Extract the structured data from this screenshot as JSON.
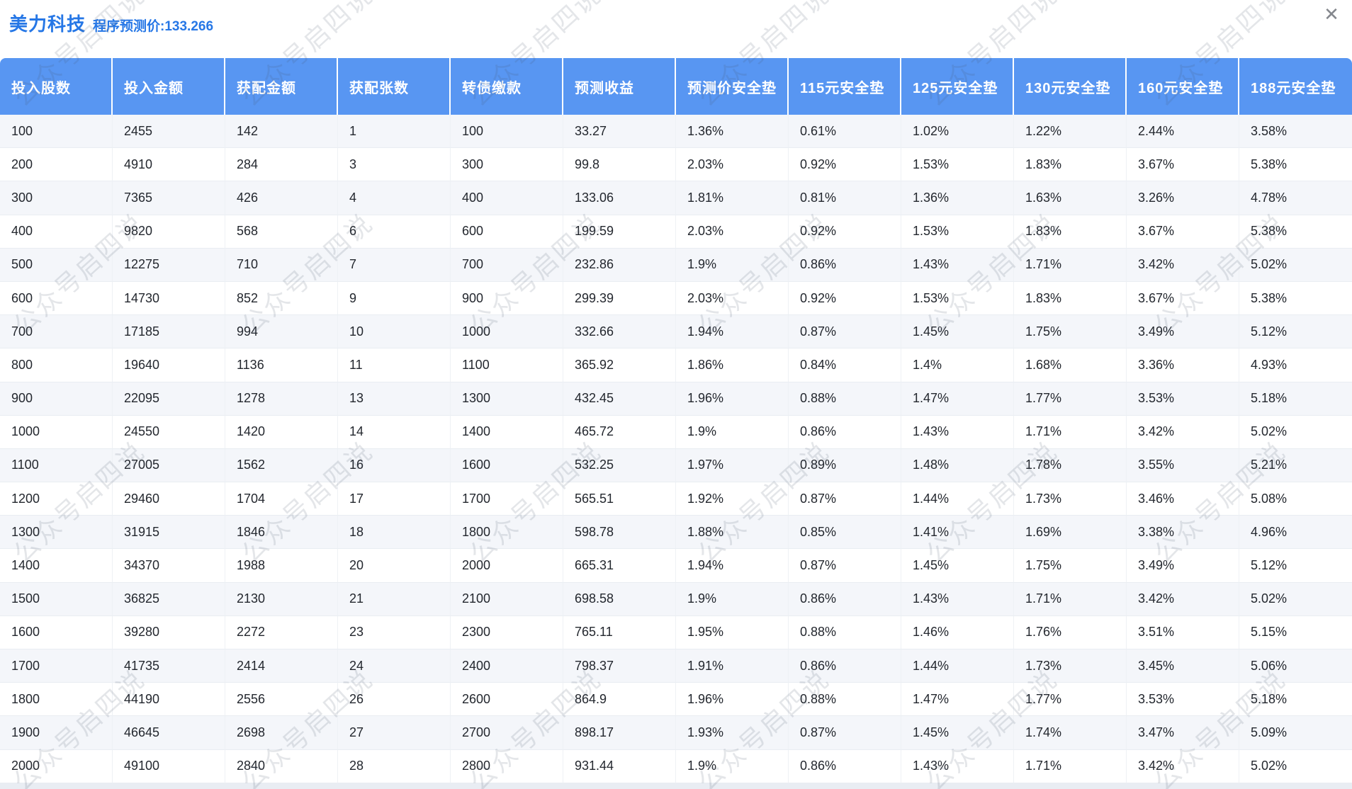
{
  "header": {
    "title": "美力科技",
    "subtitle": "程序预测价:133.266",
    "close_icon": "✕"
  },
  "watermark": {
    "text": "公众号启四说"
  },
  "colors": {
    "accent_blue": "#2677e6",
    "table_header_bg": "#5896f2",
    "row_alt_bg": "#f4f6fa",
    "bottom_strip": "#e9edf3"
  },
  "table": {
    "columns": [
      "投入股数",
      "投入金额",
      "获配金额",
      "获配张数",
      "转债缴款",
      "预测收益",
      "预测价安全垫",
      "115元安全垫",
      "125元安全垫",
      "130元安全垫",
      "160元安全垫",
      "188元安全垫"
    ],
    "rows": [
      [
        "100",
        "2455",
        "142",
        "1",
        "100",
        "33.27",
        "1.36%",
        "0.61%",
        "1.02%",
        "1.22%",
        "2.44%",
        "3.58%"
      ],
      [
        "200",
        "4910",
        "284",
        "3",
        "300",
        "99.8",
        "2.03%",
        "0.92%",
        "1.53%",
        "1.83%",
        "3.67%",
        "5.38%"
      ],
      [
        "300",
        "7365",
        "426",
        "4",
        "400",
        "133.06",
        "1.81%",
        "0.81%",
        "1.36%",
        "1.63%",
        "3.26%",
        "4.78%"
      ],
      [
        "400",
        "9820",
        "568",
        "6",
        "600",
        "199.59",
        "2.03%",
        "0.92%",
        "1.53%",
        "1.83%",
        "3.67%",
        "5.38%"
      ],
      [
        "500",
        "12275",
        "710",
        "7",
        "700",
        "232.86",
        "1.9%",
        "0.86%",
        "1.43%",
        "1.71%",
        "3.42%",
        "5.02%"
      ],
      [
        "600",
        "14730",
        "852",
        "9",
        "900",
        "299.39",
        "2.03%",
        "0.92%",
        "1.53%",
        "1.83%",
        "3.67%",
        "5.38%"
      ],
      [
        "700",
        "17185",
        "994",
        "10",
        "1000",
        "332.66",
        "1.94%",
        "0.87%",
        "1.45%",
        "1.75%",
        "3.49%",
        "5.12%"
      ],
      [
        "800",
        "19640",
        "1136",
        "11",
        "1100",
        "365.92",
        "1.86%",
        "0.84%",
        "1.4%",
        "1.68%",
        "3.36%",
        "4.93%"
      ],
      [
        "900",
        "22095",
        "1278",
        "13",
        "1300",
        "432.45",
        "1.96%",
        "0.88%",
        "1.47%",
        "1.77%",
        "3.53%",
        "5.18%"
      ],
      [
        "1000",
        "24550",
        "1420",
        "14",
        "1400",
        "465.72",
        "1.9%",
        "0.86%",
        "1.43%",
        "1.71%",
        "3.42%",
        "5.02%"
      ],
      [
        "1100",
        "27005",
        "1562",
        "16",
        "1600",
        "532.25",
        "1.97%",
        "0.89%",
        "1.48%",
        "1.78%",
        "3.55%",
        "5.21%"
      ],
      [
        "1200",
        "29460",
        "1704",
        "17",
        "1700",
        "565.51",
        "1.92%",
        "0.87%",
        "1.44%",
        "1.73%",
        "3.46%",
        "5.08%"
      ],
      [
        "1300",
        "31915",
        "1846",
        "18",
        "1800",
        "598.78",
        "1.88%",
        "0.85%",
        "1.41%",
        "1.69%",
        "3.38%",
        "4.96%"
      ],
      [
        "1400",
        "34370",
        "1988",
        "20",
        "2000",
        "665.31",
        "1.94%",
        "0.87%",
        "1.45%",
        "1.75%",
        "3.49%",
        "5.12%"
      ],
      [
        "1500",
        "36825",
        "2130",
        "21",
        "2100",
        "698.58",
        "1.9%",
        "0.86%",
        "1.43%",
        "1.71%",
        "3.42%",
        "5.02%"
      ],
      [
        "1600",
        "39280",
        "2272",
        "23",
        "2300",
        "765.11",
        "1.95%",
        "0.88%",
        "1.46%",
        "1.76%",
        "3.51%",
        "5.15%"
      ],
      [
        "1700",
        "41735",
        "2414",
        "24",
        "2400",
        "798.37",
        "1.91%",
        "0.86%",
        "1.44%",
        "1.73%",
        "3.45%",
        "5.06%"
      ],
      [
        "1800",
        "44190",
        "2556",
        "26",
        "2600",
        "864.9",
        "1.96%",
        "0.88%",
        "1.47%",
        "1.77%",
        "3.53%",
        "5.18%"
      ],
      [
        "1900",
        "46645",
        "2698",
        "27",
        "2700",
        "898.17",
        "1.93%",
        "0.87%",
        "1.45%",
        "1.74%",
        "3.47%",
        "5.09%"
      ],
      [
        "2000",
        "49100",
        "2840",
        "28",
        "2800",
        "931.44",
        "1.9%",
        "0.86%",
        "1.43%",
        "1.71%",
        "3.42%",
        "5.02%"
      ]
    ]
  }
}
